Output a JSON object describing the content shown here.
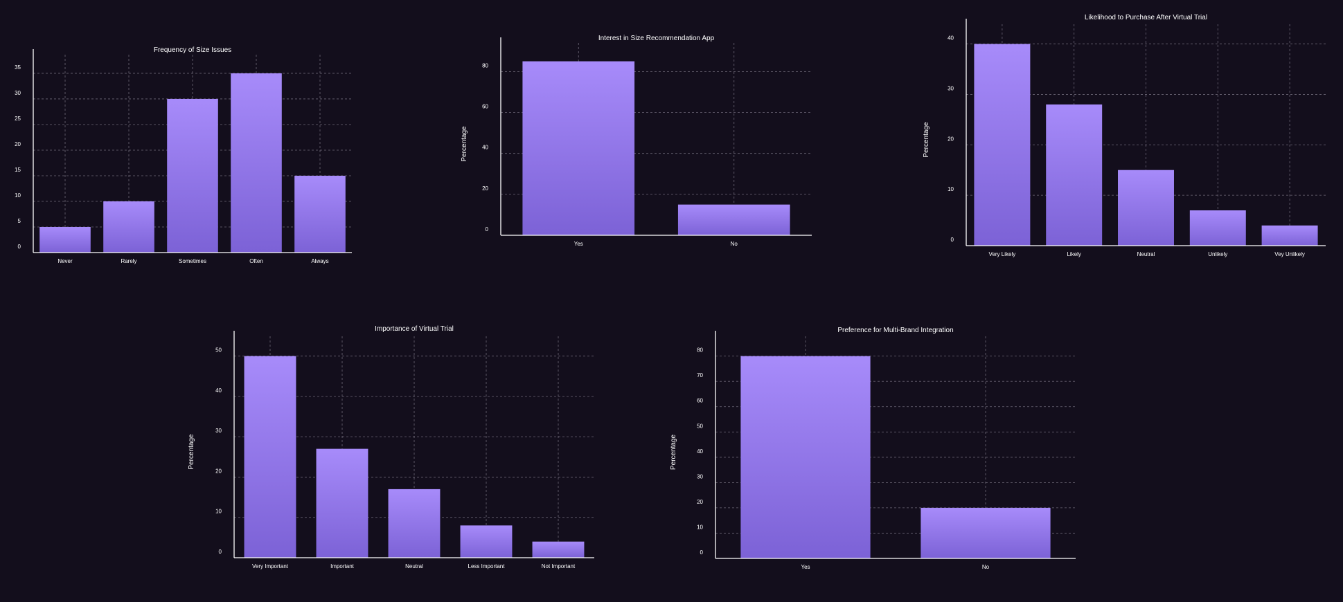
{
  "colors": {
    "background": "#130e1c",
    "bar_top": "#a78bfa",
    "bar_bottom": "#7c62d6",
    "grid": "#8c8696",
    "text": "#ffffff"
  },
  "chart_data": [
    {
      "type": "bar",
      "title": "Frequency of Size Issues",
      "ylabel": "",
      "categories": [
        "Never",
        "Rarely",
        "Sometimes",
        "Often",
        "Always"
      ],
      "values": [
        5,
        10,
        30,
        35,
        15
      ],
      "yticks": [
        0,
        5,
        10,
        15,
        20,
        25,
        30,
        35
      ],
      "ylim": [
        0,
        35
      ],
      "grid": true
    },
    {
      "type": "bar",
      "title": "Interest in Size Recommendation App",
      "ylabel": "Percentage",
      "categories": [
        "Yes",
        "No"
      ],
      "values": [
        85,
        15
      ],
      "yticks": [
        0,
        20,
        40,
        60,
        80
      ],
      "ylim": [
        0,
        85
      ],
      "grid": true
    },
    {
      "type": "bar",
      "title": "Likelihood to Purchase After Virtual Trial",
      "ylabel": "Percentage",
      "categories": [
        "Very Likely",
        "Likely",
        "Neutral",
        "Unlikely",
        "Vey Unlikely"
      ],
      "values": [
        40,
        28,
        15,
        7,
        4
      ],
      "yticks": [
        0,
        10,
        20,
        30,
        40
      ],
      "ylim": [
        0,
        40
      ],
      "grid": true
    },
    {
      "type": "bar",
      "title": "Importance of Virtual Trial",
      "ylabel": "Percentage",
      "categories": [
        "Very Important",
        "Important",
        "Neutral",
        "Less Important",
        "Not Important"
      ],
      "values": [
        50,
        27,
        17,
        8,
        4
      ],
      "yticks": [
        0,
        10,
        20,
        30,
        40,
        50
      ],
      "ylim": [
        0,
        50
      ],
      "grid": true
    },
    {
      "type": "bar",
      "title": "Preference for Multi-Brand Integration",
      "ylabel": "Percentage",
      "categories": [
        "Yes",
        "No"
      ],
      "values": [
        80,
        20
      ],
      "yticks": [
        0,
        10,
        20,
        30,
        40,
        50,
        60,
        70,
        80
      ],
      "ylim": [
        0,
        80
      ],
      "grid": true
    }
  ]
}
